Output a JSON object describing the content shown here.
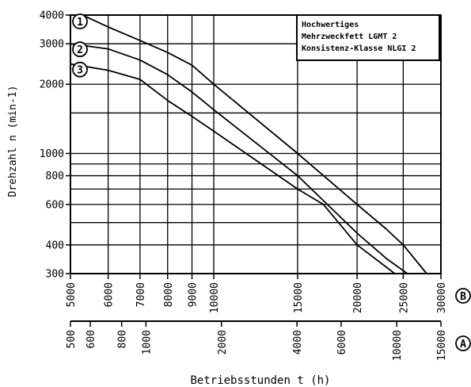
{
  "chart_data": {
    "type": "line",
    "scale_x": "log",
    "scale_y": "log",
    "ylabel": "Drehzahl n (min-1)",
    "xlabel": "Betriebsstunden t (h)",
    "ylim": [
      300,
      4000
    ],
    "y_ticks": [
      300,
      400,
      600,
      800,
      1000,
      2000,
      3000,
      4000
    ],
    "y_gridlines": [
      300,
      400,
      500,
      600,
      700,
      800,
      900,
      1000,
      1500,
      2000,
      3000,
      4000
    ],
    "x_axes": [
      {
        "marker": "B",
        "xlim": [
          5000,
          30000
        ],
        "ticks": [
          5000,
          6000,
          7000,
          8000,
          9000,
          10000,
          15000,
          20000,
          25000,
          30000
        ],
        "tick_labels": [
          "5000",
          "6000",
          "7000",
          "8000",
          "9000",
          "10000",
          "15000",
          "20000",
          "25000",
          "30000"
        ]
      },
      {
        "marker": "A",
        "xlim": [
          500,
          15000
        ],
        "ticks": [
          500,
          600,
          800,
          1000,
          2000,
          4000,
          6000,
          10000,
          15000
        ],
        "tick_labels": [
          "500",
          "600",
          "800",
          "1000",
          "2000",
          "4000",
          "6000",
          "10000",
          "15000"
        ]
      }
    ],
    "grid": true,
    "legend_lines": [
      "Hochwertiges",
      "Mehrzweckfett LGMT 2",
      "Konsistenz-Klasse NLGI 2"
    ],
    "series": [
      {
        "name": "1",
        "x_axis": "B",
        "points": [
          [
            5300,
            4000
          ],
          [
            6000,
            3550
          ],
          [
            7000,
            3100
          ],
          [
            8000,
            2750
          ],
          [
            9000,
            2420
          ],
          [
            10000,
            2000
          ],
          [
            15000,
            1000
          ],
          [
            20000,
            600
          ],
          [
            23000,
            470
          ],
          [
            25000,
            400
          ],
          [
            28000,
            300
          ]
        ]
      },
      {
        "name": "2",
        "x_axis": "B",
        "points": [
          [
            5000,
            3000
          ],
          [
            6000,
            2850
          ],
          [
            7000,
            2550
          ],
          [
            8000,
            2200
          ],
          [
            9000,
            1850
          ],
          [
            10000,
            1550
          ],
          [
            15000,
            800
          ],
          [
            20000,
            450
          ],
          [
            23000,
            350
          ],
          [
            25500,
            300
          ]
        ]
      },
      {
        "name": "3",
        "x_axis": "B",
        "points": [
          [
            5000,
            2450
          ],
          [
            6000,
            2300
          ],
          [
            7000,
            2100
          ],
          [
            8000,
            1700
          ],
          [
            9000,
            1450
          ],
          [
            10000,
            1250
          ],
          [
            15000,
            700
          ],
          [
            17000,
            600
          ],
          [
            20000,
            400
          ],
          [
            24000,
            300
          ]
        ]
      }
    ]
  }
}
